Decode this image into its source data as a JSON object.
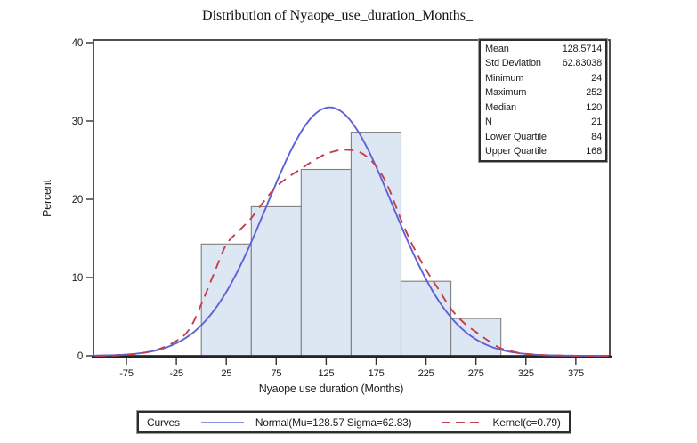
{
  "chart_data": {
    "type": "bar",
    "subtype": "histogram-with-density-curves",
    "title": "Distribution of Nyaope_use_duration_Months_",
    "xlabel": "Nyaope use duration (Months)",
    "ylabel": "Percent",
    "x_ticks": [
      -75,
      -25,
      25,
      75,
      125,
      175,
      225,
      275,
      325,
      375
    ],
    "y_ticks": [
      0,
      10,
      20,
      30,
      40
    ],
    "xlim": [
      -108,
      409
    ],
    "ylim": [
      0,
      40.34
    ],
    "grid": false,
    "bin_width": 50,
    "n": 21,
    "bins": [
      {
        "start": 0,
        "end": 50,
        "midpoint": 25,
        "count": 3,
        "percent": 14.2857
      },
      {
        "start": 50,
        "end": 100,
        "midpoint": 75,
        "count": 4,
        "percent": 19.0476
      },
      {
        "start": 100,
        "end": 150,
        "midpoint": 125,
        "count": 5,
        "percent": 23.8095
      },
      {
        "start": 150,
        "end": 200,
        "midpoint": 175,
        "count": 6,
        "percent": 28.5714
      },
      {
        "start": 200,
        "end": 250,
        "midpoint": 225,
        "count": 2,
        "percent": 9.5238
      },
      {
        "start": 250,
        "end": 300,
        "midpoint": 275,
        "count": 1,
        "percent": 4.7619
      }
    ],
    "bar_fill": "#dde7f3",
    "bar_stroke": "#7f7f7f",
    "curves": [
      {
        "name": "Normal(Mu=128.57 Sigma=62.83)",
        "kind": "normal",
        "mu": 128.5714,
        "sigma": 62.83038,
        "color": "#5d62d8",
        "style": "solid",
        "peak_percent": 31.7
      },
      {
        "name": "Kernel(c=0.79)",
        "kind": "kernel",
        "c": 0.79,
        "color": "#c2404d",
        "style": "dashed",
        "peak_percent": 26.3,
        "points": [
          [
            -105,
            0
          ],
          [
            -85,
            0.05
          ],
          [
            -65,
            0.25
          ],
          [
            -45,
            0.75
          ],
          [
            -25,
            1.9
          ],
          [
            -12,
            3.4
          ],
          [
            0,
            6.6
          ],
          [
            12,
            10.3
          ],
          [
            25,
            14.2
          ],
          [
            38,
            16.0
          ],
          [
            50,
            17.6
          ],
          [
            62,
            19.6
          ],
          [
            75,
            21.6
          ],
          [
            88,
            22.9
          ],
          [
            100,
            23.9
          ],
          [
            112,
            24.9
          ],
          [
            125,
            25.8
          ],
          [
            138,
            26.25
          ],
          [
            148,
            26.3
          ],
          [
            158,
            26.05
          ],
          [
            168,
            25.2
          ],
          [
            178,
            23.7
          ],
          [
            188,
            21.3
          ],
          [
            200,
            17.4
          ],
          [
            212,
            14.0
          ],
          [
            225,
            11.0
          ],
          [
            238,
            8.4
          ],
          [
            250,
            6.0
          ],
          [
            263,
            4.2
          ],
          [
            275,
            3.05
          ],
          [
            290,
            1.7
          ],
          [
            300,
            0.95
          ],
          [
            315,
            0.45
          ],
          [
            325,
            0.25
          ],
          [
            345,
            0.08
          ],
          [
            365,
            0.02
          ],
          [
            390,
            0
          ],
          [
            408,
            0
          ]
        ]
      }
    ]
  },
  "stats_box": {
    "rows": [
      {
        "label": "Mean",
        "value": "128.5714"
      },
      {
        "label": "Std Deviation",
        "value": "62.83038"
      },
      {
        "label": "Minimum",
        "value": "24"
      },
      {
        "label": "Maximum",
        "value": "252"
      },
      {
        "label": "Median",
        "value": "120"
      },
      {
        "label": "N",
        "value": "21"
      },
      {
        "label": "Lower Quartile",
        "value": "84"
      },
      {
        "label": "Upper Quartile",
        "value": "168"
      }
    ]
  },
  "legend": {
    "title": "Curves",
    "entries": [
      {
        "label": "Normal(Mu=128.57 Sigma=62.83)"
      },
      {
        "label": "Kernel(c=0.79)"
      }
    ]
  }
}
